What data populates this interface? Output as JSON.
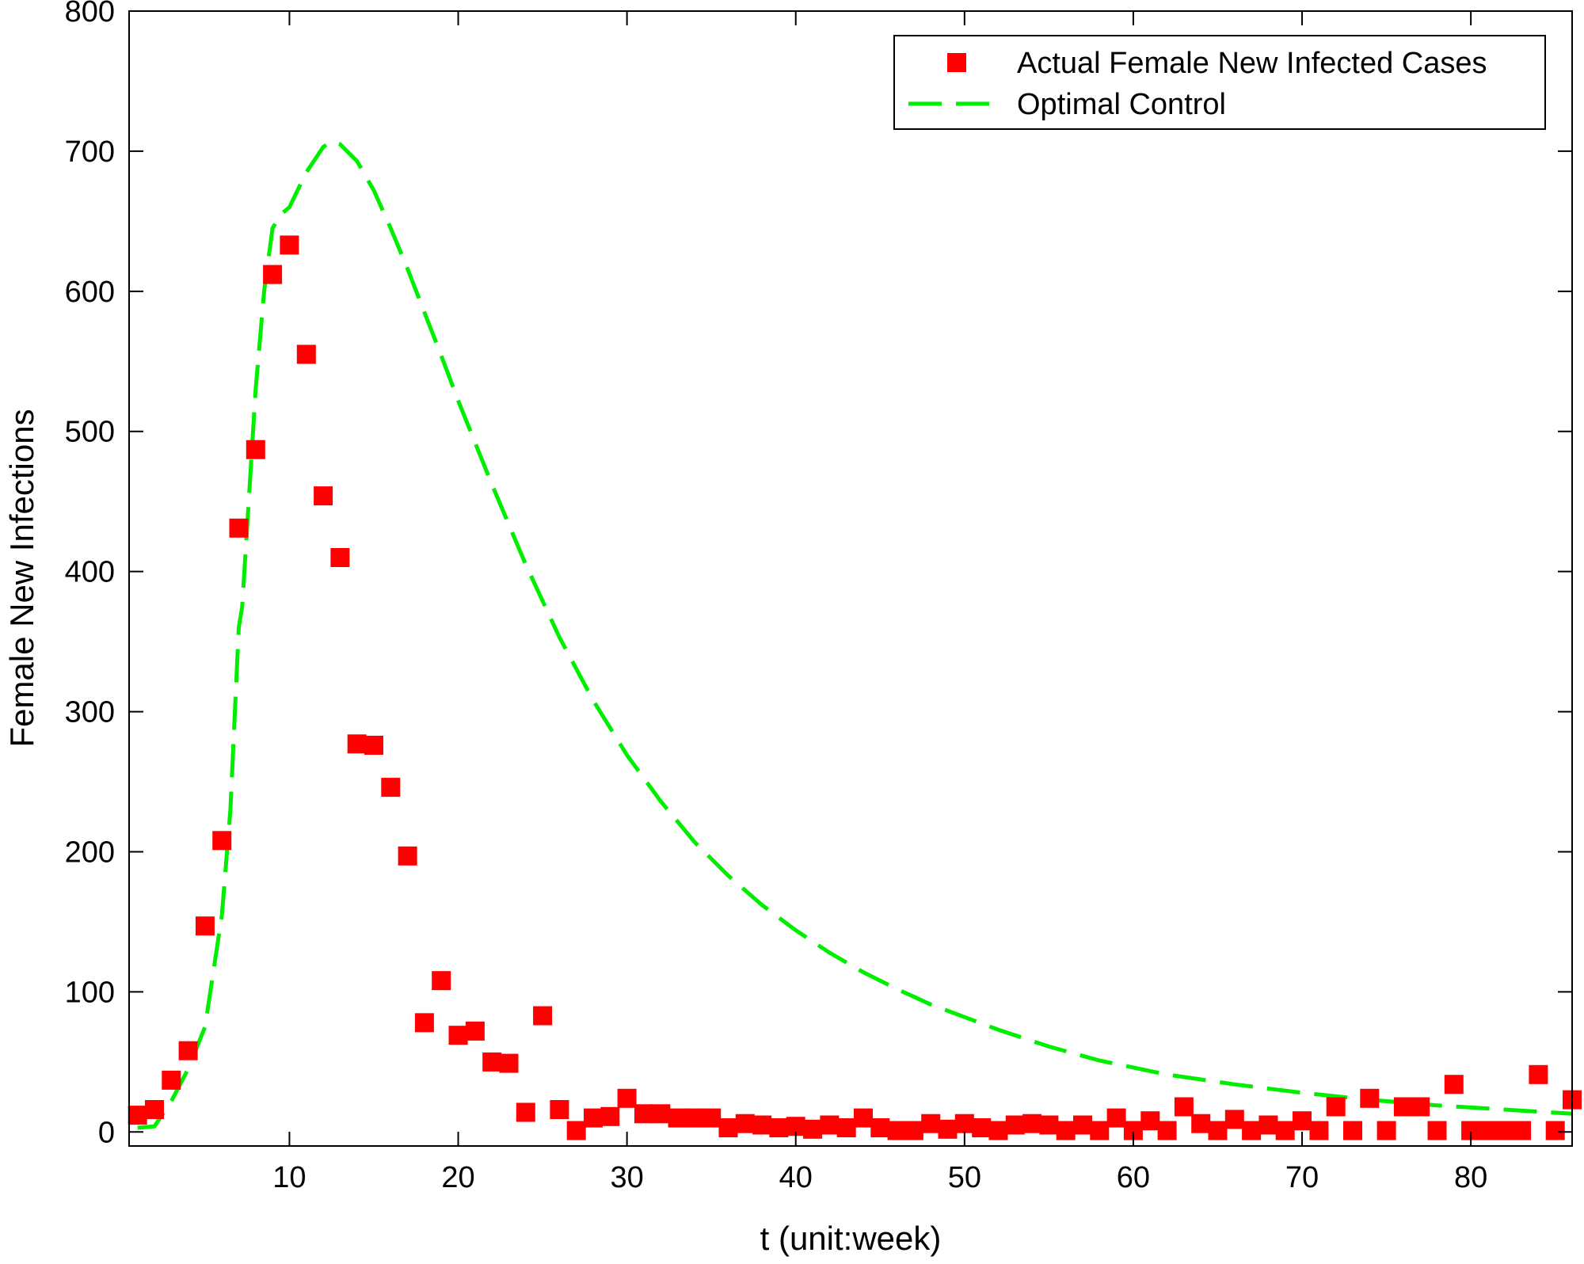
{
  "chart_data": {
    "type": "scatter",
    "title": "",
    "xlabel": "t (unit:week)",
    "ylabel": "Female New Infections",
    "xlim": [
      0.5,
      86
    ],
    "ylim": [
      -10,
      800
    ],
    "xticks": [
      10,
      20,
      30,
      40,
      50,
      60,
      70,
      80
    ],
    "yticks": [
      0,
      100,
      200,
      300,
      400,
      500,
      600,
      700,
      800
    ],
    "grid": false,
    "legend_position": "top-right",
    "series": [
      {
        "name": "Actual Female New Infected Cases",
        "type": "scatter",
        "marker": "square",
        "color": "#ff0000",
        "x": [
          1,
          2,
          3,
          4,
          5,
          6,
          7,
          8,
          9,
          10,
          11,
          12,
          13,
          14,
          15,
          16,
          17,
          18,
          19,
          20,
          21,
          22,
          23,
          24,
          25,
          26,
          27,
          28,
          29,
          30,
          31,
          32,
          33,
          34,
          35,
          36,
          37,
          38,
          39,
          40,
          41,
          42,
          43,
          44,
          45,
          46,
          47,
          48,
          49,
          50,
          51,
          52,
          53,
          54,
          55,
          56,
          57,
          58,
          59,
          60,
          61,
          62,
          63,
          64,
          65,
          66,
          67,
          68,
          69,
          70,
          71,
          72,
          73,
          74,
          75,
          76,
          77,
          78,
          79,
          80,
          81,
          82,
          83,
          84,
          85,
          86
        ],
        "y": [
          12,
          16,
          37,
          58,
          147,
          208,
          431,
          487,
          612,
          633,
          555,
          454,
          410,
          277,
          276,
          246,
          197,
          78,
          108,
          69,
          72,
          50,
          49,
          14,
          83,
          16,
          1,
          10,
          11,
          24,
          13,
          13,
          10,
          10,
          10,
          3,
          6,
          5,
          3,
          4,
          2,
          5,
          3,
          10,
          3,
          1,
          1,
          6,
          2,
          6,
          3,
          1,
          5,
          6,
          5,
          1,
          5,
          1,
          10,
          1,
          8,
          1,
          18,
          6,
          1,
          9,
          1,
          5,
          1,
          8,
          1,
          18,
          1,
          24,
          1,
          18,
          18,
          1,
          34,
          1,
          1,
          1,
          1,
          41,
          1,
          23
        ]
      },
      {
        "name": "Optimal Control",
        "type": "line",
        "style": "dashed",
        "color": "#00ee00",
        "x": [
          1,
          2,
          3,
          4,
          5,
          6,
          6.5,
          7,
          7.2,
          8,
          8.5,
          9,
          9.5,
          10,
          11,
          12,
          12.5,
          13,
          14,
          15,
          16,
          17,
          18,
          19,
          20,
          22,
          24,
          26,
          28,
          30,
          32,
          34,
          36,
          38,
          40,
          42,
          44,
          46,
          48,
          50,
          52,
          55,
          58,
          62,
          66,
          70,
          74,
          78,
          82,
          86
        ],
        "y": [
          3,
          4,
          22,
          45,
          75,
          155,
          230,
          360,
          375,
          530,
          600,
          645,
          655,
          660,
          685,
          703,
          707,
          705,
          693,
          672,
          645,
          616,
          585,
          554,
          522,
          462,
          405,
          353,
          308,
          269,
          236,
          207,
          183,
          162,
          144,
          128,
          114,
          102,
          91,
          82,
          73,
          61,
          51,
          41,
          34,
          28,
          23,
          19,
          16,
          13
        ]
      }
    ]
  }
}
